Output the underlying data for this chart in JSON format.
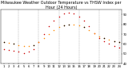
{
  "title": "Milwaukee Weather Outdoor Temperature vs THSW Index per Hour (24 Hours)",
  "temp": [
    62,
    61,
    60,
    59,
    58,
    58,
    59,
    62,
    66,
    70,
    74,
    77,
    79,
    80,
    80,
    79,
    77,
    74,
    71,
    68,
    66,
    64,
    63,
    62
  ],
  "thsw": [
    55,
    54,
    53,
    52,
    51,
    52,
    55,
    62,
    70,
    78,
    84,
    88,
    91,
    92,
    91,
    88,
    84,
    78,
    71,
    66,
    63,
    60,
    58,
    56
  ],
  "temp_color": "#ff8800",
  "thsw_color": "#cc0000",
  "black_color": "#000000",
  "bg_color": "#ffffff",
  "grid_color": "#999999",
  "ylim": [
    40,
    95
  ],
  "yticks": [
    40,
    50,
    60,
    70,
    80,
    90
  ],
  "ytick_labels": [
    "40",
    "50",
    "60",
    "70",
    "80",
    "90"
  ],
  "grid_hours": [
    4,
    8,
    12,
    16,
    20,
    24
  ],
  "title_fontsize": 3.5,
  "tick_fontsize": 2.8,
  "marker_size": 1.2
}
